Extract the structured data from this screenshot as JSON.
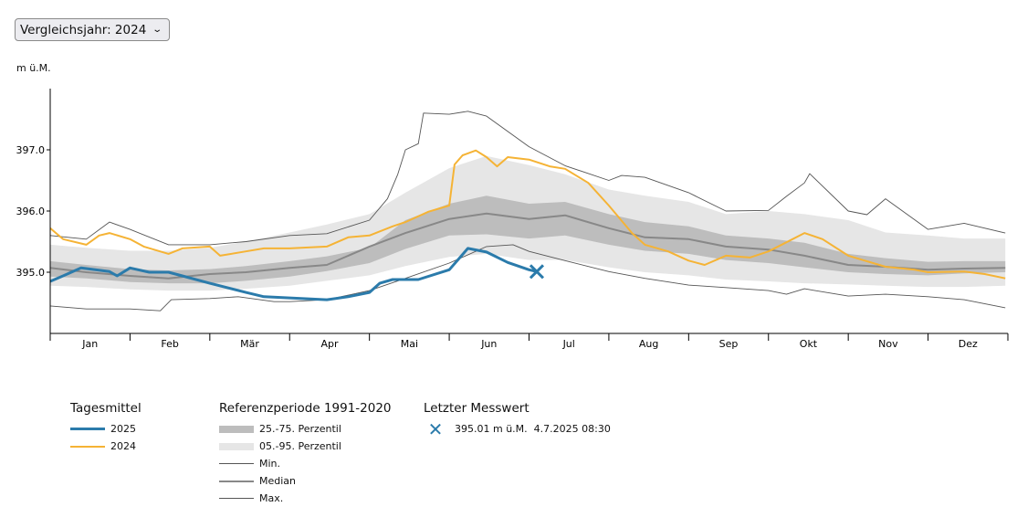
{
  "selector": {
    "label": "Vergleichsjahr: 2024",
    "icon": "chevron-down-icon"
  },
  "chart_data": {
    "type": "line",
    "ylabel": "m ü.M.",
    "ylim": [
      394.0,
      398.0
    ],
    "yticks": [
      "395.0",
      "396.0",
      "397.0"
    ],
    "yticks_values": [
      395.0,
      396.0,
      397.0
    ],
    "months": [
      "Jan",
      "Feb",
      "Mär",
      "Apr",
      "Mai",
      "Jun",
      "Jul",
      "Aug",
      "Sep",
      "Okt",
      "Nov",
      "Dez"
    ],
    "grid": false,
    "legend_placement": "bottom",
    "colors": {
      "y2025": "#2b7bab",
      "y2024": "#f5b335",
      "p25_75": "#bdbdbd",
      "p05_95": "#e6e6e6",
      "min": "#555555",
      "median": "#888888",
      "max": "#555555"
    },
    "reference": {
      "dates": [
        "01-01",
        "01-15",
        "02-01",
        "02-15",
        "03-01",
        "03-15",
        "04-01",
        "04-15",
        "05-01",
        "05-15",
        "06-01",
        "06-15",
        "07-01",
        "07-15",
        "08-01",
        "08-15",
        "09-01",
        "09-15",
        "10-01",
        "10-15",
        "11-01",
        "11-15",
        "12-01",
        "12-15",
        "12-31"
      ],
      "p05": [
        394.78,
        394.76,
        394.72,
        394.7,
        394.7,
        394.73,
        394.78,
        394.86,
        394.95,
        395.1,
        395.25,
        395.3,
        395.2,
        395.2,
        395.08,
        395.0,
        394.95,
        394.88,
        394.85,
        394.82,
        394.8,
        394.78,
        394.76,
        394.76,
        394.78
      ],
      "p25": [
        394.93,
        394.9,
        394.84,
        394.82,
        394.82,
        394.86,
        394.93,
        395.02,
        395.15,
        395.38,
        395.6,
        395.62,
        395.55,
        395.6,
        395.45,
        395.35,
        395.3,
        395.2,
        395.15,
        395.08,
        395.0,
        394.97,
        394.95,
        394.98,
        395.0
      ],
      "median": [
        395.07,
        395.0,
        394.94,
        394.9,
        394.97,
        395.0,
        395.07,
        395.12,
        395.42,
        395.64,
        395.87,
        395.96,
        395.87,
        395.93,
        395.72,
        395.57,
        395.54,
        395.42,
        395.37,
        395.27,
        395.12,
        395.09,
        395.04,
        395.06,
        395.07
      ],
      "p75": [
        395.18,
        395.12,
        395.05,
        395.03,
        395.05,
        395.1,
        395.18,
        395.26,
        395.4,
        395.85,
        396.12,
        396.25,
        396.12,
        396.15,
        395.95,
        395.82,
        395.75,
        395.6,
        395.55,
        395.48,
        395.3,
        395.23,
        395.17,
        395.18,
        395.18
      ],
      "p95": [
        395.45,
        395.4,
        395.35,
        395.35,
        395.4,
        395.5,
        395.65,
        395.78,
        395.95,
        396.3,
        396.7,
        396.9,
        396.75,
        396.6,
        396.35,
        396.25,
        396.15,
        395.95,
        396.0,
        395.95,
        395.85,
        395.65,
        395.6,
        395.55,
        395.55
      ]
    },
    "min": {
      "dates": [
        "01-01",
        "01-15",
        "02-01",
        "02-12",
        "02-16",
        "03-01",
        "03-12",
        "03-26",
        "04-01",
        "04-15",
        "05-01",
        "05-15",
        "06-01",
        "06-15",
        "06-25",
        "07-01",
        "07-15",
        "08-01",
        "08-15",
        "09-01",
        "09-15",
        "10-01",
        "10-08",
        "10-15",
        "11-01",
        "11-15",
        "12-01",
        "12-15",
        "12-31"
      ],
      "values": [
        394.45,
        394.4,
        394.4,
        394.37,
        394.55,
        394.57,
        394.6,
        394.52,
        394.52,
        394.55,
        394.7,
        394.9,
        395.15,
        395.42,
        395.45,
        395.34,
        395.19,
        395.01,
        394.9,
        394.79,
        394.75,
        394.7,
        394.64,
        394.73,
        394.61,
        394.64,
        394.6,
        394.55,
        394.42
      ]
    },
    "max": {
      "dates": [
        "01-01",
        "01-15",
        "01-24",
        "02-01",
        "02-15",
        "03-01",
        "03-15",
        "04-01",
        "04-15",
        "05-01",
        "05-08",
        "05-12",
        "05-15",
        "05-20",
        "05-22",
        "06-01",
        "06-08",
        "06-15",
        "07-01",
        "07-15",
        "08-01",
        "08-06",
        "08-15",
        "09-01",
        "09-15",
        "10-01",
        "10-08",
        "10-15",
        "10-17",
        "11-01",
        "11-08",
        "11-15",
        "12-01",
        "12-15",
        "12-31"
      ],
      "values": [
        395.6,
        395.54,
        395.82,
        395.7,
        395.45,
        395.45,
        395.5,
        395.6,
        395.63,
        395.85,
        396.2,
        396.6,
        397.0,
        397.1,
        397.6,
        397.58,
        397.63,
        397.55,
        397.05,
        396.74,
        396.5,
        396.58,
        396.55,
        396.3,
        396.0,
        396.01,
        396.24,
        396.46,
        396.61,
        396.0,
        395.94,
        396.2,
        395.7,
        395.8,
        395.64
      ]
    },
    "series": [
      {
        "name": "2024",
        "dates": [
          "01-01",
          "01-06",
          "01-15",
          "01-20",
          "01-24",
          "02-01",
          "02-06",
          "02-15",
          "02-20",
          "03-01",
          "03-05",
          "03-15",
          "03-22",
          "04-01",
          "04-15",
          "04-23",
          "05-01",
          "05-10",
          "05-15",
          "05-24",
          "06-01",
          "06-03",
          "06-06",
          "06-11",
          "06-15",
          "06-19",
          "06-23",
          "07-01",
          "07-09",
          "07-15",
          "07-24",
          "08-01",
          "08-10",
          "08-15",
          "08-24",
          "09-01",
          "09-07",
          "09-15",
          "09-24",
          "10-01",
          "10-08",
          "10-15",
          "10-22",
          "11-01",
          "11-15",
          "11-26",
          "12-01",
          "12-15",
          "12-23",
          "12-31"
        ],
        "values": [
          395.72,
          395.54,
          395.45,
          395.6,
          395.64,
          395.54,
          395.42,
          395.3,
          395.39,
          395.42,
          395.27,
          395.34,
          395.39,
          395.39,
          395.42,
          395.57,
          395.6,
          395.75,
          395.82,
          395.99,
          396.09,
          396.76,
          396.91,
          396.99,
          396.88,
          396.73,
          396.88,
          396.84,
          396.73,
          396.69,
          396.46,
          396.09,
          395.64,
          395.45,
          395.34,
          395.19,
          395.12,
          395.27,
          395.24,
          395.34,
          395.49,
          395.64,
          395.54,
          395.27,
          395.09,
          395.04,
          395.0,
          395.01,
          394.97,
          394.9
        ]
      },
      {
        "name": "2025",
        "dates": [
          "01-01",
          "01-06",
          "01-13",
          "01-24",
          "01-27",
          "02-01",
          "02-08",
          "02-15",
          "02-20",
          "03-01",
          "03-15",
          "03-22",
          "04-01",
          "04-15",
          "04-23",
          "05-01",
          "05-05",
          "05-10",
          "05-15",
          "05-20",
          "06-01",
          "06-08",
          "06-15",
          "06-23",
          "07-01",
          "07-04"
        ],
        "values": [
          394.85,
          394.94,
          395.07,
          395.01,
          394.94,
          395.07,
          395.0,
          395.0,
          394.94,
          394.82,
          394.67,
          394.6,
          394.58,
          394.55,
          394.6,
          394.67,
          394.82,
          394.88,
          394.88,
          394.88,
          395.04,
          395.39,
          395.33,
          395.16,
          395.04,
          395.01
        ]
      }
    ]
  },
  "legend": {
    "daily": {
      "title": "Tagesmittel",
      "items": [
        "2025",
        "2024"
      ]
    },
    "reference": {
      "title": "Referenzperiode 1991-2020",
      "items": [
        "25.-75. Perzentil",
        "05.-95. Perzentil",
        "Min.",
        "Median",
        "Max."
      ]
    },
    "last": {
      "title": "Letzter Messwert",
      "value": "395.01 m ü.M.",
      "timestamp": "4.7.2025 08:30",
      "date": "07-04",
      "level": 395.01
    }
  }
}
